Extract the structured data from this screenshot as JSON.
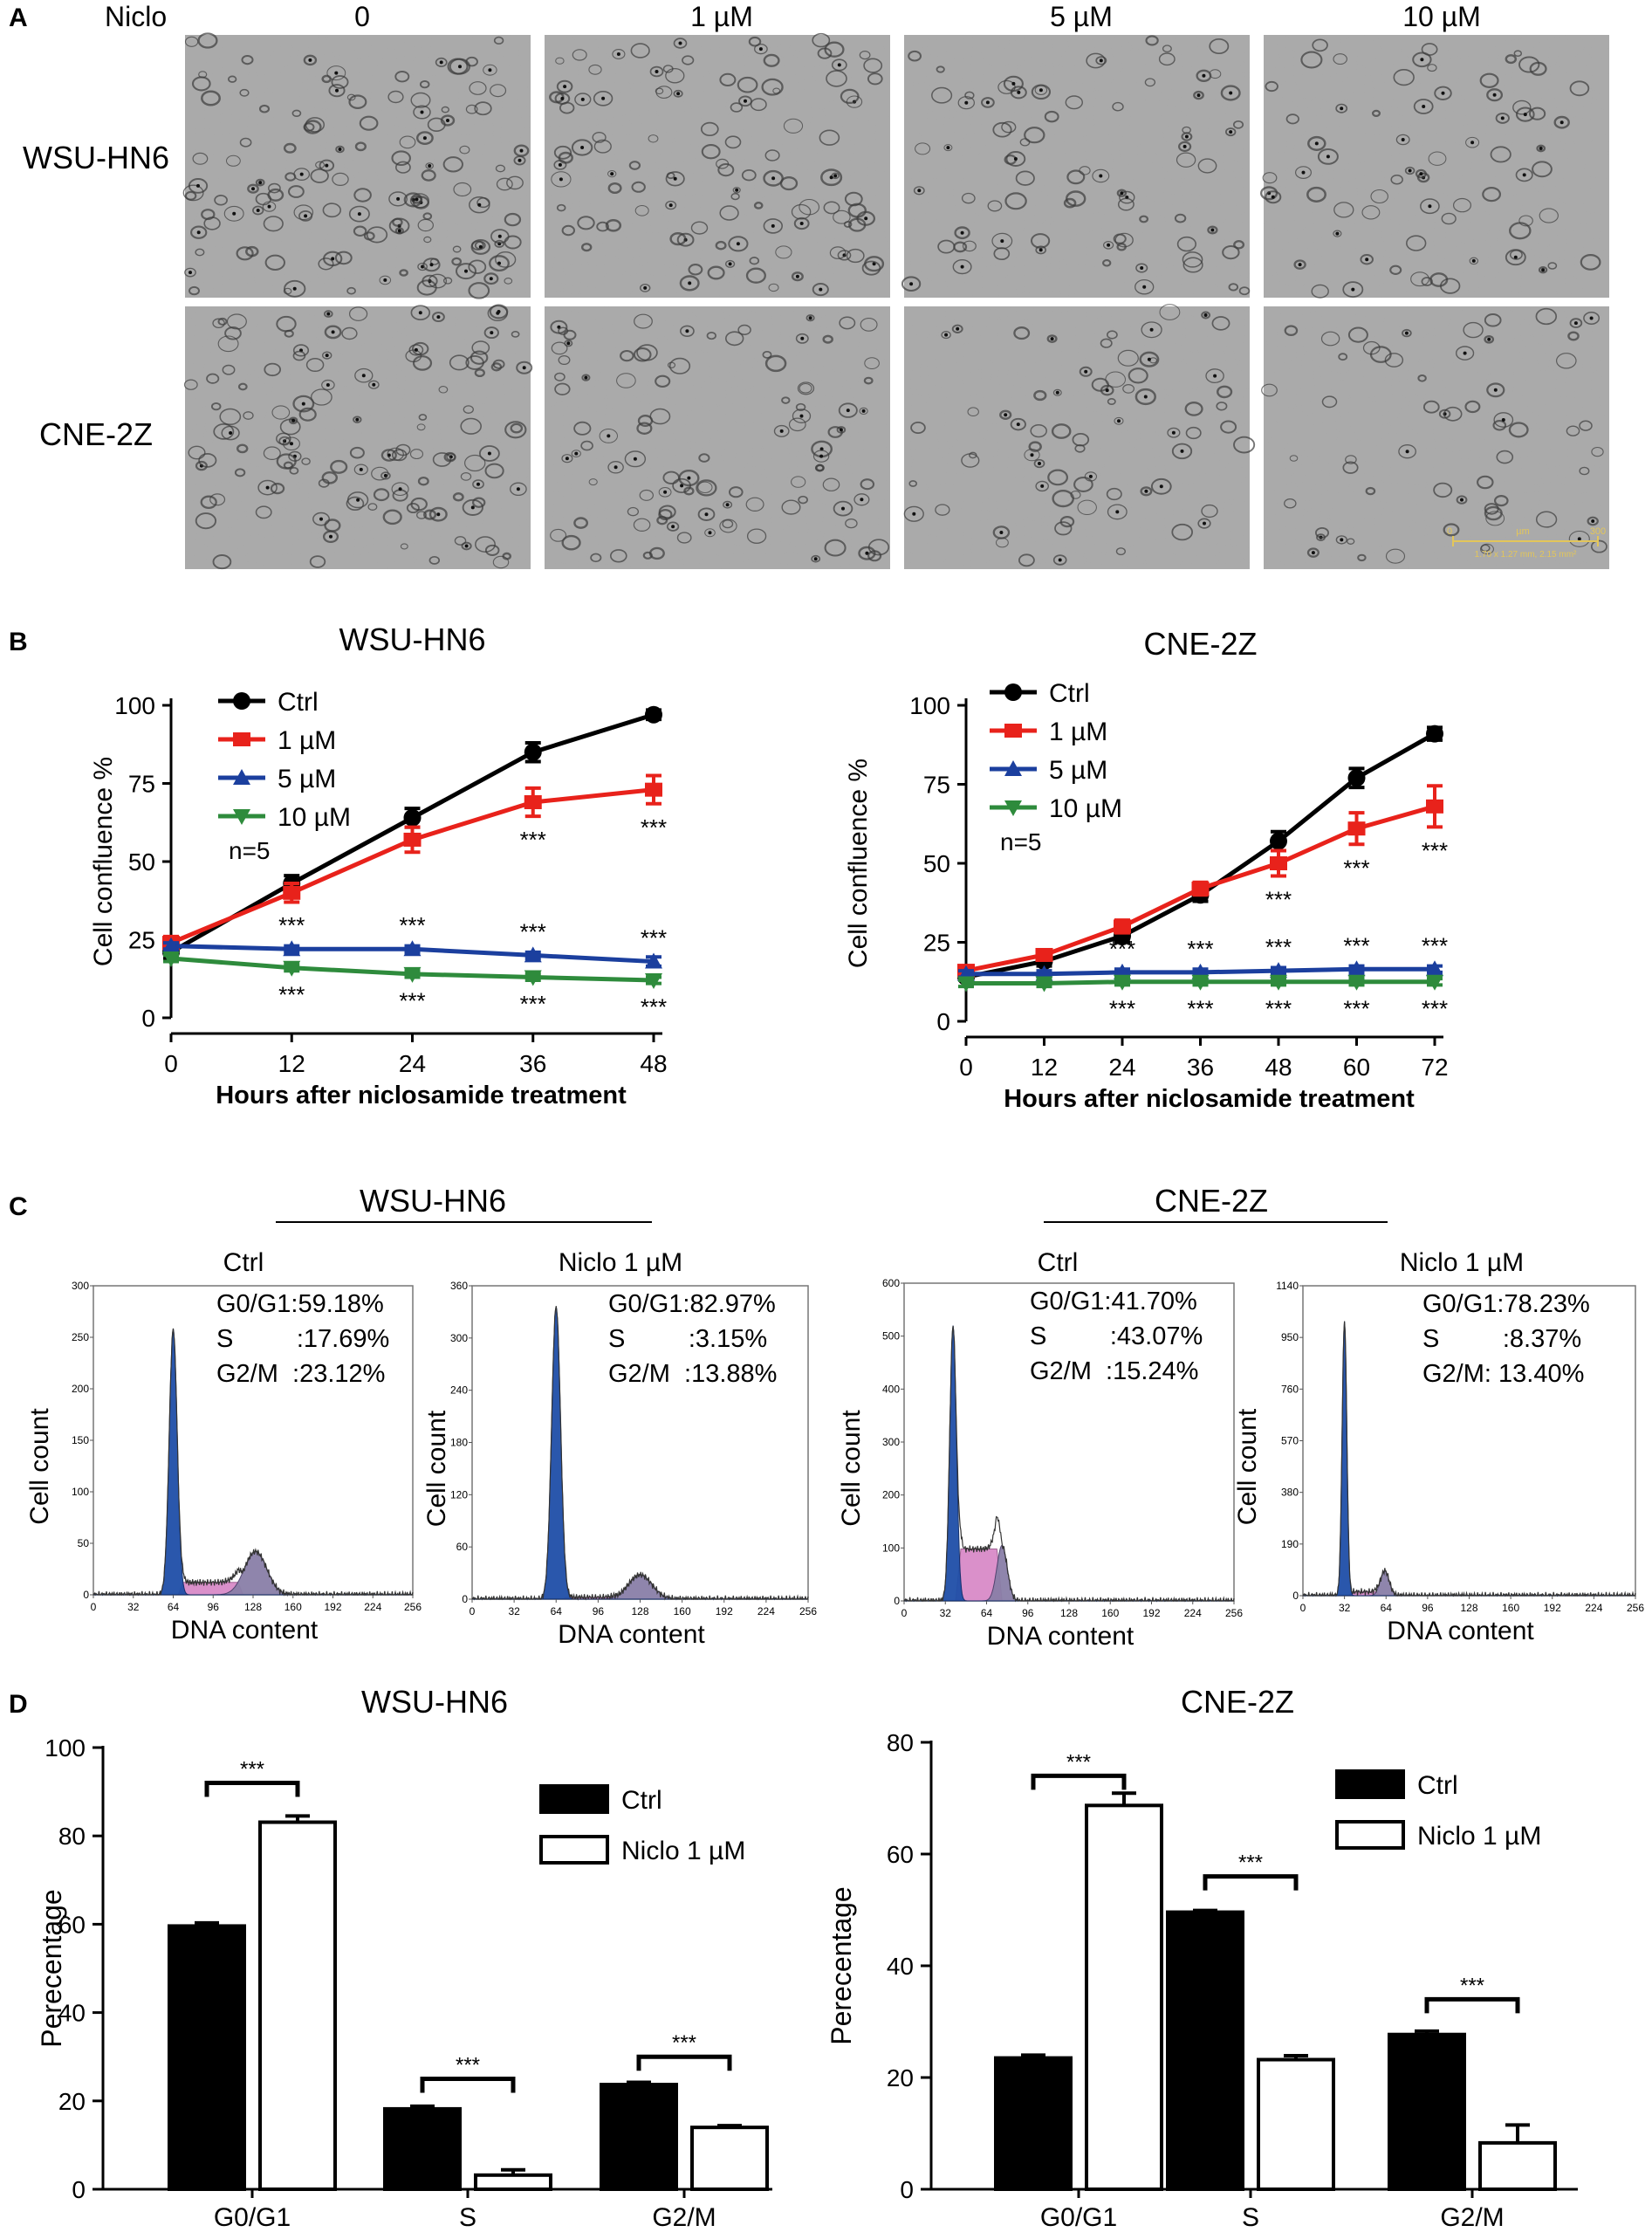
{
  "panel_labels": {
    "a": "A",
    "b": "B",
    "c": "C",
    "d": "D"
  },
  "panel_a": {
    "treatment_label": "Niclo",
    "columns": [
      "0",
      "1 µM",
      "5 µM",
      "10 µM"
    ],
    "rows": [
      "WSU-HN6",
      "CNE-2Z"
    ],
    "scale_bar": {
      "start": "0",
      "unit": "µm",
      "end": "300",
      "caption": "1.70 x 1.27 mm, 2.15 mm²"
    }
  },
  "chart_data": [
    {
      "id": "b1",
      "type": "line",
      "title": "WSU-HN6",
      "xlabel": "Hours after niclosamide treatment",
      "ylabel": "Cell confluence %",
      "x": [
        0,
        12,
        24,
        36,
        48
      ],
      "xticks": [
        "0",
        "12",
        "24",
        "36",
        "48"
      ],
      "yticks": [
        "0",
        "25",
        "50",
        "75",
        "100"
      ],
      "xlim": [
        0,
        48
      ],
      "ylim": [
        0,
        100
      ],
      "note": "n=5",
      "series": [
        {
          "name": "Ctrl",
          "color": "#000000",
          "marker": "circle",
          "values": [
            21,
            43,
            64,
            85,
            97
          ],
          "errors": [
            2,
            2.5,
            3,
            3,
            1.5
          ]
        },
        {
          "name": "1 µM",
          "color": "#e8221b",
          "marker": "square",
          "values": [
            24,
            40,
            57,
            69,
            73
          ],
          "errors": [
            2,
            3,
            4,
            4.5,
            4.5
          ],
          "sig": [
            "",
            "",
            "",
            "***",
            "***"
          ]
        },
        {
          "name": "5 µM",
          "color": "#1b3f9e",
          "marker": "triangle-up",
          "values": [
            23,
            22,
            22,
            20,
            18
          ],
          "errors": [
            1,
            1,
            1,
            1,
            1.5
          ],
          "sig": [
            "",
            "***",
            "***",
            "***",
            "***"
          ]
        },
        {
          "name": "10 µM",
          "color": "#2e8b3c",
          "marker": "triangle-down",
          "values": [
            19,
            16,
            14,
            13,
            12
          ],
          "errors": [
            1,
            1,
            1,
            1,
            1
          ],
          "sig": [
            "",
            "***",
            "***",
            "***",
            "***"
          ]
        }
      ]
    },
    {
      "id": "b2",
      "type": "line",
      "title": "CNE-2Z",
      "xlabel": "Hours after niclosamide treatment",
      "ylabel": "Cell confluence %",
      "x": [
        0,
        12,
        24,
        36,
        48,
        60,
        72
      ],
      "xticks": [
        "0",
        "12",
        "24",
        "36",
        "48",
        "60",
        "72"
      ],
      "yticks": [
        "0",
        "25",
        "50",
        "75",
        "100"
      ],
      "xlim": [
        0,
        72
      ],
      "ylim": [
        0,
        100
      ],
      "note": "n=5",
      "series": [
        {
          "name": "Ctrl",
          "color": "#000000",
          "marker": "circle",
          "values": [
            14,
            19,
            27,
            40,
            57,
            77,
            91
          ],
          "errors": [
            1,
            1.5,
            2,
            2,
            3,
            3,
            2
          ]
        },
        {
          "name": "1 µM",
          "color": "#e8221b",
          "marker": "square",
          "values": [
            16,
            21,
            30,
            42,
            50,
            61,
            68
          ],
          "errors": [
            1.5,
            1.5,
            2,
            2,
            4,
            5,
            6.5
          ],
          "sig": [
            "",
            "",
            "",
            "",
            "***",
            "***",
            "***"
          ]
        },
        {
          "name": "5 µM",
          "color": "#1b3f9e",
          "marker": "triangle-up",
          "values": [
            15,
            15,
            15.5,
            15.5,
            16,
            16.5,
            16.5
          ],
          "errors": [
            1,
            1,
            1,
            1,
            1,
            1,
            1
          ],
          "sig": [
            "",
            "",
            "***",
            "***",
            "***",
            "***",
            "***"
          ]
        },
        {
          "name": "10 µM",
          "color": "#2e8b3c",
          "marker": "triangle-down",
          "values": [
            12,
            12,
            12.5,
            12.5,
            12.5,
            12.5,
            12.5
          ],
          "errors": [
            1,
            1,
            1,
            1,
            1,
            1,
            1
          ],
          "sig": [
            "",
            "",
            "***",
            "***",
            "***",
            "***",
            "***"
          ]
        }
      ]
    },
    {
      "id": "c1",
      "type": "histogram",
      "group": "WSU-HN6",
      "label": "Ctrl",
      "xlabel": "DNA content",
      "ylabel": "Cell count",
      "xticks": [
        "0",
        "32",
        "64",
        "96",
        "128",
        "160",
        "192",
        "224",
        "256"
      ],
      "yticks": [
        "0",
        "50",
        "100",
        "150",
        "200",
        "250",
        "300"
      ],
      "xlim": [
        0,
        256
      ],
      "ylim": [
        0,
        300
      ],
      "stats": [
        {
          "phase": "G0/G1",
          "text": "G0/G1:59.18%"
        },
        {
          "phase": "S",
          "text": "S         :17.69%"
        },
        {
          "phase": "G2/M",
          "text": "G2/M  :23.12%"
        }
      ],
      "g1": {
        "mean": 64,
        "sd": 3.2,
        "peak": 258
      },
      "s": {
        "start": 68,
        "end": 120,
        "level": 12
      },
      "g2": {
        "mean": 130,
        "sd": 9,
        "peak": 42
      }
    },
    {
      "id": "c2",
      "type": "histogram",
      "group": "WSU-HN6",
      "label": "Niclo 1 µM",
      "xlabel": "DNA content",
      "ylabel": "Cell count",
      "xticks": [
        "0",
        "32",
        "64",
        "96",
        "128",
        "160",
        "192",
        "224",
        "256"
      ],
      "yticks": [
        "0",
        "60",
        "120",
        "180",
        "240",
        "300",
        "360"
      ],
      "xlim": [
        0,
        256
      ],
      "ylim": [
        0,
        360
      ],
      "stats": [
        {
          "phase": "G0/G1",
          "text": "G0/G1:82.97%"
        },
        {
          "phase": "S",
          "text": "S         :3.15%"
        },
        {
          "phase": "G2/M",
          "text": "G2/M  :13.88%"
        }
      ],
      "g1": {
        "mean": 64,
        "sd": 3.4,
        "peak": 336
      },
      "s": {
        "start": 68,
        "end": 112,
        "level": 2
      },
      "g2": {
        "mean": 128,
        "sd": 9,
        "peak": 28
      }
    },
    {
      "id": "c3",
      "type": "histogram",
      "group": "CNE-2Z",
      "label": "Ctrl",
      "xlabel": "DNA content",
      "ylabel": "Cell count",
      "xticks": [
        "0",
        "32",
        "64",
        "96",
        "128",
        "160",
        "192",
        "224",
        "256"
      ],
      "yticks": [
        "0",
        "100",
        "200",
        "300",
        "400",
        "500",
        "600"
      ],
      "xlim": [
        0,
        256
      ],
      "ylim": [
        0,
        600
      ],
      "stats": [
        {
          "phase": "G0/G1",
          "text": "G0/G1:41.70%"
        },
        {
          "phase": "S",
          "text": "S         :43.07%"
        },
        {
          "phase": "G2/M",
          "text": "G2/M  :15.24%"
        }
      ],
      "g1": {
        "mean": 38,
        "sd": 2.6,
        "peak": 520
      },
      "s": {
        "start": 40,
        "end": 76,
        "level": 98
      },
      "g2": {
        "mean": 76,
        "sd": 4,
        "peak": 105
      }
    },
    {
      "id": "c4",
      "type": "histogram",
      "group": "CNE-2Z",
      "label": "Niclo 1 µM",
      "xlabel": "DNA content",
      "ylabel": "Cell count",
      "xticks": [
        "0",
        "32",
        "64",
        "96",
        "128",
        "160",
        "192",
        "224",
        "256"
      ],
      "yticks": [
        "0",
        "190",
        "380",
        "570",
        "760",
        "950",
        "1140"
      ],
      "xlim": [
        0,
        256
      ],
      "ylim": [
        0,
        1140
      ],
      "stats": [
        {
          "phase": "G0/G1",
          "text": "G0/G1:78.23%"
        },
        {
          "phase": "S",
          "text": "S         :8.37%"
        },
        {
          "phase": "G2/M",
          "text": "G2/M: 13.40%"
        }
      ],
      "g1": {
        "mean": 32,
        "sd": 1.8,
        "peak": 1010
      },
      "s": {
        "start": 35,
        "end": 60,
        "level": 14
      },
      "g2": {
        "mean": 63,
        "sd": 3.4,
        "peak": 92
      }
    },
    {
      "id": "d1",
      "type": "bar",
      "title": "WSU-HN6",
      "ylabel": "Perecentage",
      "categories": [
        "G0/G1",
        "S",
        "G2/M"
      ],
      "yticks": [
        "0",
        "20",
        "40",
        "60",
        "80",
        "100"
      ],
      "ylim": [
        0,
        100
      ],
      "series": [
        {
          "name": "Ctrl",
          "fill": "#000000",
          "values": [
            59.6,
            18.2,
            23.7
          ],
          "errors": [
            0.7,
            0.6,
            0.5
          ]
        },
        {
          "name": "Niclo 1 µM",
          "fill": "#ffffff",
          "values": [
            83.1,
            3.2,
            14.0
          ],
          "errors": [
            1.4,
            1.2,
            0.4
          ]
        }
      ],
      "significance": [
        "***",
        "***",
        "***"
      ],
      "sig_levels": [
        92,
        25,
        30
      ]
    },
    {
      "id": "d2",
      "type": "bar",
      "title": "CNE-2Z",
      "ylabel": "Perecentage",
      "categories": [
        "G0/G1",
        "S",
        "G2/M"
      ],
      "yticks": [
        "0",
        "20",
        "40",
        "60",
        "80"
      ],
      "ylim": [
        0,
        80
      ],
      "series": [
        {
          "name": "Ctrl",
          "fill": "#000000",
          "values": [
            23.5,
            49.6,
            27.7
          ],
          "errors": [
            0.5,
            0.3,
            0.6
          ]
        },
        {
          "name": "Niclo 1 µM",
          "fill": "#ffffff",
          "values": [
            68.7,
            23.2,
            8.3
          ],
          "errors": [
            2.2,
            0.7,
            3.2
          ]
        }
      ],
      "significance": [
        "***",
        "***",
        "***"
      ],
      "sig_levels": [
        74,
        56,
        34
      ]
    }
  ],
  "colors": {
    "g1_fill": "#1f4fa8",
    "s_fill": "#d98bc8",
    "g2_fill": "#8a7fa8",
    "micrograph_bg": "#a9a9a9",
    "cell": "#3a3a3a",
    "scale_bar": "#e3c65a"
  }
}
